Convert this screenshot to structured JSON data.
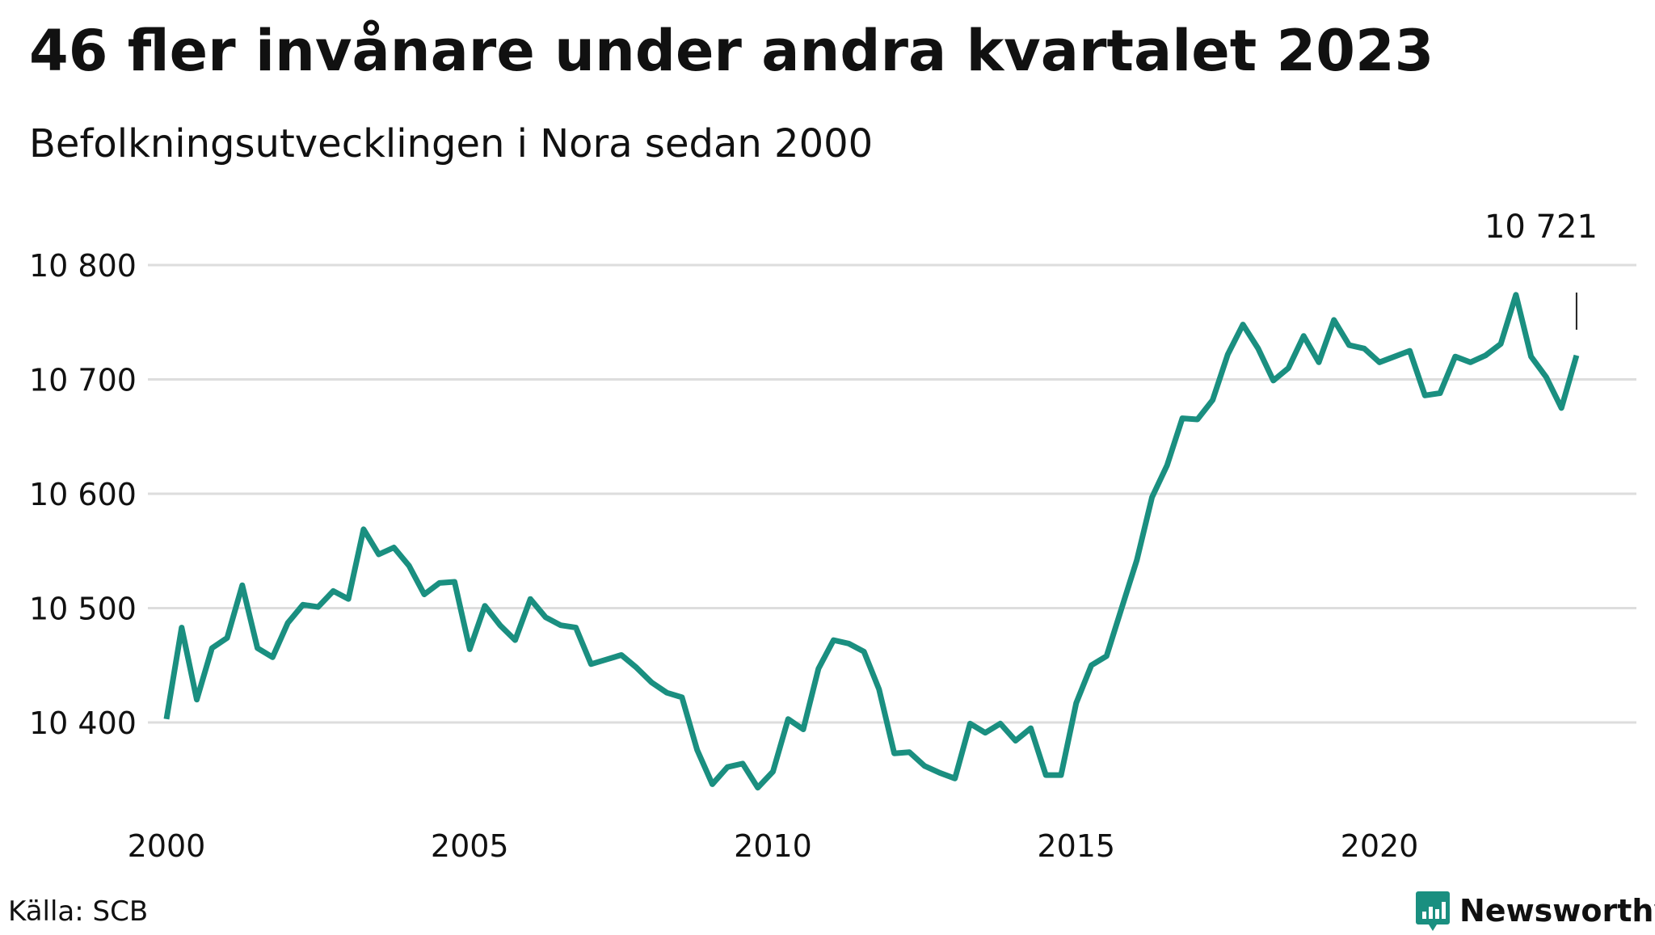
{
  "header": {
    "title": "46 fler invånare under andra kvartalet 2023",
    "subtitle": "Befolkningsutvecklingen i Nora sedan 2000"
  },
  "footer": {
    "source": "Källa: SCB",
    "brand": "Newsworthy"
  },
  "colors": {
    "line": "#1a8f80",
    "grid": "#dddddd",
    "brand": "#1a8f80"
  },
  "chart_data": {
    "type": "line",
    "grid": true,
    "y_ticks": [
      10400,
      10500,
      10600,
      10700,
      10800
    ],
    "y_tick_labels": [
      "10 400",
      "10 500",
      "10 600",
      "10 700",
      "10 800"
    ],
    "x_ticks": [
      2000,
      2005,
      2010,
      2015,
      2020
    ],
    "x_tick_labels": [
      "2000",
      "2005",
      "2010",
      "2015",
      "2020"
    ],
    "annotation": {
      "label": "10 721",
      "x": 2023.25,
      "y": 10721
    },
    "series": [
      {
        "x": [
          2000.0,
          2000.25,
          2000.5,
          2000.75,
          2001.0,
          2001.25,
          2001.5,
          2001.75,
          2002.0,
          2002.25,
          2002.5,
          2002.75,
          2003.0,
          2003.25,
          2003.5,
          2003.75,
          2004.0,
          2004.25,
          2004.5,
          2004.75,
          2005.0,
          2005.25,
          2005.5,
          2005.75,
          2006.0,
          2006.25,
          2006.5,
          2006.75,
          2007.0,
          2007.25,
          2007.5,
          2007.75,
          2008.0,
          2008.25,
          2008.5,
          2008.75,
          2009.0,
          2009.25,
          2009.5,
          2009.75,
          2010.0,
          2010.25,
          2010.5,
          2010.75,
          2011.0,
          2011.25,
          2011.5,
          2011.75,
          2012.0,
          2012.25,
          2012.5,
          2012.75,
          2013.0,
          2013.25,
          2013.5,
          2013.75,
          2014.0,
          2014.25,
          2014.5,
          2014.75,
          2015.0,
          2015.25,
          2015.5,
          2015.75,
          2016.0,
          2016.25,
          2016.5,
          2016.75,
          2017.0,
          2017.25,
          2017.5,
          2017.75,
          2018.0,
          2018.25,
          2018.5,
          2018.75,
          2019.0,
          2019.25,
          2019.5,
          2019.75,
          2020.0,
          2020.25,
          2020.5,
          2020.75,
          2021.0,
          2021.25,
          2021.5,
          2021.75,
          2022.0,
          2022.25,
          2022.5,
          2022.75,
          2023.0,
          2023.25
        ],
        "y": [
          10403,
          10483,
          10420,
          10465,
          10474,
          10520,
          10465,
          10457,
          10487,
          10503,
          10501,
          10515,
          10508,
          10569,
          10547,
          10553,
          10537,
          10512,
          10522,
          10523,
          10464,
          10502,
          10485,
          10472,
          10508,
          10492,
          10485,
          10483,
          10451,
          10455,
          10459,
          10448,
          10435,
          10426,
          10422,
          10376,
          10346,
          10361,
          10364,
          10343,
          10357,
          10403,
          10394,
          10447,
          10472,
          10469,
          10462,
          10429,
          10373,
          10374,
          10362,
          10356,
          10351,
          10399,
          10391,
          10399,
          10384,
          10395,
          10354,
          10354,
          10417,
          10450,
          10458,
          10500,
          10542,
          10597,
          10625,
          10666,
          10665,
          10682,
          10722,
          10748,
          10727,
          10699,
          10710,
          10738,
          10715,
          10752,
          10730,
          10727,
          10715,
          10720,
          10725,
          10686,
          10688,
          10720,
          10715,
          10721,
          10731,
          10774,
          10720,
          10702,
          10675,
          10721
        ]
      }
    ]
  }
}
